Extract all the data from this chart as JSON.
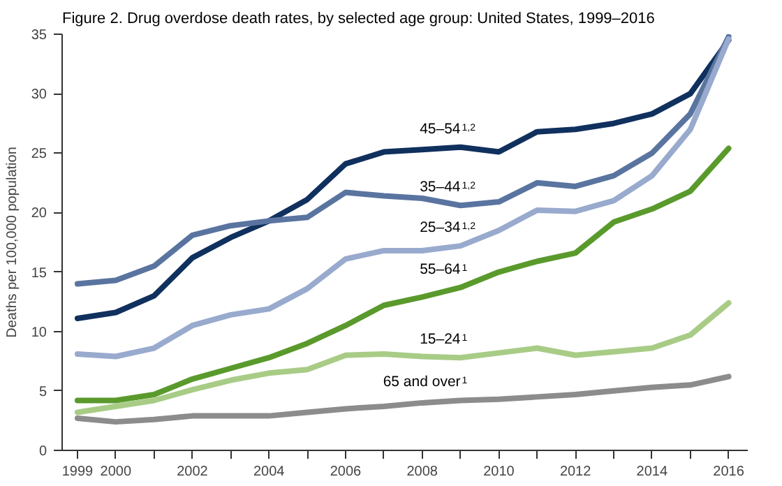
{
  "chart_data": {
    "type": "line",
    "title": "Figure 2. Drug overdose death rates, by selected age group: United States, 1999–2016",
    "ylabel": "Deaths per 100,000 population",
    "x": [
      1999,
      2000,
      2001,
      2002,
      2003,
      2004,
      2005,
      2006,
      2007,
      2008,
      2009,
      2010,
      2011,
      2012,
      2013,
      2014,
      2015,
      2016
    ],
    "xlim": [
      1998.6,
      2016.5
    ],
    "xticks": [
      1999,
      2000,
      {
        "value": 2001,
        "label": null
      },
      2002,
      {
        "value": 2003,
        "label": null
      },
      2004,
      {
        "value": 2005,
        "label": null
      },
      2006,
      {
        "value": 2007,
        "label": null
      },
      2008,
      {
        "value": 2009,
        "label": null
      },
      2010,
      {
        "value": 2011,
        "label": null
      },
      2012,
      {
        "value": 2013,
        "label": null
      },
      2014,
      {
        "value": 2015,
        "label": null
      },
      2016
    ],
    "ylim": [
      0,
      35
    ],
    "yticks": [
      0,
      5,
      10,
      15,
      20,
      25,
      30,
      35
    ],
    "grid": false,
    "marker": "none",
    "line_style": "solid",
    "series": [
      {
        "name": "45–54$^{1,2}$",
        "color": "#10305e",
        "values": [
          11.1,
          11.6,
          13.0,
          16.2,
          17.9,
          19.3,
          21.1,
          24.1,
          25.1,
          25.3,
          25.5,
          25.1,
          26.8,
          27.0,
          27.5,
          28.3,
          30.0,
          34.5
        ]
      },
      {
        "name": "35–44$^{1,2}$",
        "color": "#5a74a0",
        "values": [
          14.0,
          14.3,
          15.5,
          18.1,
          18.9,
          19.3,
          19.6,
          21.7,
          21.4,
          21.2,
          20.6,
          20.9,
          22.5,
          22.2,
          23.1,
          25.0,
          28.3,
          34.8
        ]
      },
      {
        "name": "25–34$^{1,2}$",
        "color": "#98aacd",
        "values": [
          8.1,
          7.9,
          8.6,
          10.5,
          11.4,
          11.9,
          13.6,
          16.1,
          16.8,
          16.8,
          17.2,
          18.5,
          20.2,
          20.1,
          21.0,
          23.1,
          27.0,
          34.6
        ]
      },
      {
        "name": "55–64$^{1}$",
        "color": "#5a9a2c",
        "values": [
          4.2,
          4.2,
          4.7,
          6.0,
          6.9,
          7.8,
          9.0,
          10.5,
          12.2,
          12.9,
          13.7,
          15.0,
          15.9,
          16.6,
          19.2,
          20.3,
          21.8,
          25.4
        ]
      },
      {
        "name": "15–24$^{1}$",
        "color": "#a8cc86",
        "values": [
          3.2,
          3.7,
          4.2,
          5.1,
          5.9,
          6.5,
          6.8,
          8.0,
          8.1,
          7.9,
          7.8,
          8.2,
          8.6,
          8.0,
          8.3,
          8.6,
          9.7,
          12.4
        ]
      },
      {
        "name": "65 and over$^{1}$",
        "color": "#8c8c8c",
        "values": [
          2.7,
          2.4,
          2.6,
          2.9,
          2.9,
          2.9,
          3.2,
          3.5,
          3.7,
          4.0,
          4.2,
          4.3,
          4.5,
          4.7,
          5.0,
          5.3,
          5.5,
          6.2
        ]
      }
    ]
  }
}
